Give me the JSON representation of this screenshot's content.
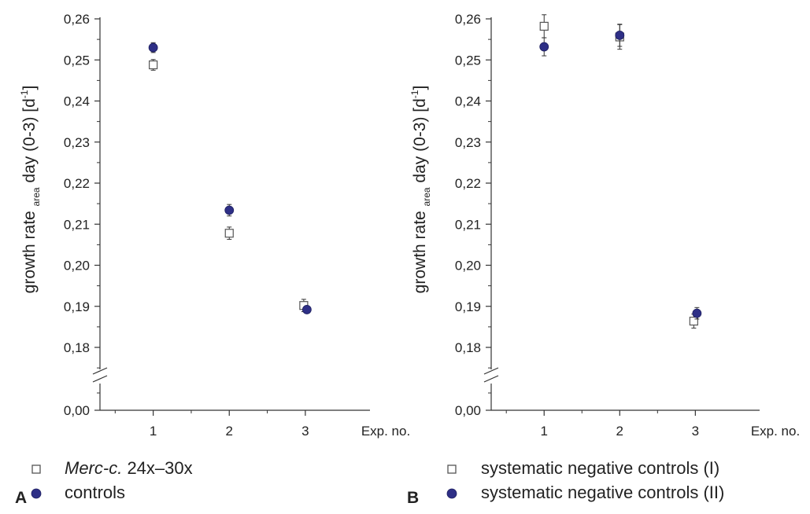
{
  "colors": {
    "control_fill": "#2e2f86",
    "control_stroke": "#1f2060",
    "square_stroke": "#555555",
    "axis": "#333333"
  },
  "panels": [
    {
      "panel_label": "A",
      "ylabel": {
        "prefix": "growth rate ",
        "sub": "area",
        "suffix": " day (0-3) [d",
        "sup": "-1",
        "end": "]"
      },
      "x_axis_label": "Exp. no.",
      "break_tick_label": "0,00",
      "legend": [
        {
          "marker": "open-square",
          "label_parts": [
            {
              "text": "Merc-c.",
              "italic": true
            },
            {
              "text": " 24x–30x",
              "italic": false
            }
          ]
        },
        {
          "marker": "filled-circle",
          "label_parts": [
            {
              "text": "controls",
              "italic": false
            }
          ]
        }
      ]
    },
    {
      "panel_label": "B",
      "ylabel": {
        "prefix": "growth rate ",
        "sub": "area",
        "suffix": " day (0-3) [d",
        "sup": "-1",
        "end": "]"
      },
      "x_axis_label": "Exp. no.",
      "break_tick_label": "0,00",
      "legend": [
        {
          "marker": "open-square",
          "label_parts": [
            {
              "text": "systematic negative controls (I)",
              "italic": false
            }
          ]
        },
        {
          "marker": "filled-circle",
          "label_parts": [
            {
              "text": "systematic negative controls (II)",
              "italic": false
            }
          ]
        }
      ]
    }
  ],
  "chart_data": [
    {
      "type": "scatter",
      "panel": "A",
      "x_ticks": [
        "1",
        "2",
        "3"
      ],
      "y_ticks": [
        "0,18",
        "0,19",
        "0,20",
        "0,21",
        "0,22",
        "0,23",
        "0,24",
        "0,25",
        "0,26"
      ],
      "ylim": [
        0.175,
        0.26
      ],
      "y_axis_break": true,
      "xlim": [
        0.3,
        3.85
      ],
      "series": [
        {
          "name": "Merc-c. 24x–30x",
          "marker": "open-square",
          "x": [
            1,
            2,
            3
          ],
          "y": [
            0.2488,
            0.2078,
            0.1902
          ],
          "err": [
            0.0013,
            0.0015,
            0.0015
          ]
        },
        {
          "name": "controls",
          "marker": "filled-circle",
          "x": [
            1,
            2,
            3
          ],
          "y": [
            0.253,
            0.2134,
            0.1892
          ],
          "err": [
            0.0012,
            0.0014,
            0.0008
          ]
        }
      ]
    },
    {
      "type": "scatter",
      "panel": "B",
      "x_ticks": [
        "1",
        "2",
        "3"
      ],
      "y_ticks": [
        "0,18",
        "0,19",
        "0,20",
        "0,21",
        "0,22",
        "0,23",
        "0,24",
        "0,25",
        "0,26"
      ],
      "ylim": [
        0.175,
        0.26
      ],
      "y_axis_break": true,
      "xlim": [
        0.3,
        3.85
      ],
      "series": [
        {
          "name": "systematic negative controls (I)",
          "marker": "open-square",
          "x": [
            1,
            2,
            3
          ],
          "y": [
            0.2582,
            0.2556,
            0.1864
          ],
          "err": [
            0.0028,
            0.003,
            0.0017
          ]
        },
        {
          "name": "systematic negative controls (II)",
          "marker": "filled-circle",
          "x": [
            1,
            2,
            3
          ],
          "y": [
            0.2532,
            0.256,
            0.1883
          ],
          "err": [
            0.0022,
            0.0027,
            0.0014
          ]
        }
      ]
    }
  ]
}
